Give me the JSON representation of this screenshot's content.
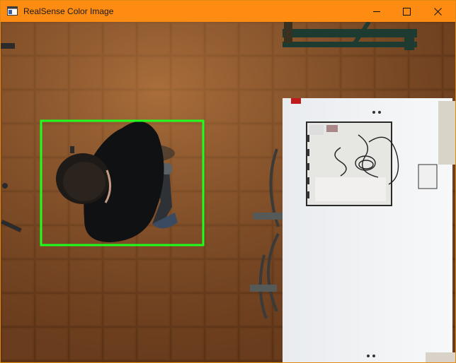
{
  "window": {
    "title": "RealSense Color Image",
    "controls": {
      "minimize_icon": "minimize-icon",
      "maximize_icon": "maximize-icon",
      "close_icon": "close-icon"
    },
    "titlebar_color": "#ff8c12"
  },
  "image": {
    "scene": "overhead-camera-view",
    "detection_box_color": "#1dff1d"
  }
}
